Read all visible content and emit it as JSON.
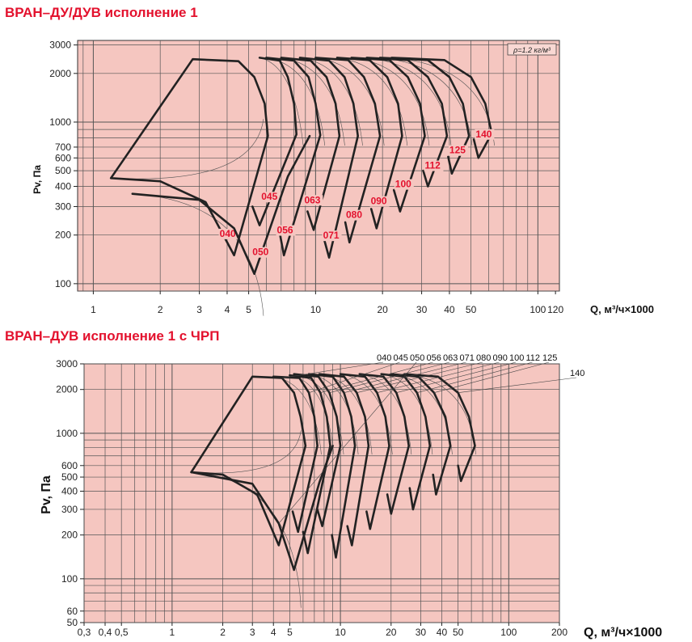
{
  "titles": {
    "chart1": "ВРАН–ДУ/ДУВ исполнение 1",
    "chart2": "ВРАН–ДУВ исполнение 1 с ЧРП"
  },
  "colors": {
    "title": "#e3122e",
    "background": "#f5c6c0",
    "grid": "#555555",
    "curve": "#222222"
  },
  "chart_data": [
    {
      "type": "line",
      "title": "ВРАН–ДУ/ДУВ исполнение 1",
      "xlabel": "Q, м³/ч×1000",
      "ylabel": "Pv, Па",
      "x_scale": "log",
      "y_scale": "log",
      "xlim": [
        0.85,
        125
      ],
      "ylim": [
        90,
        3200
      ],
      "x_ticks": [
        1,
        2,
        3,
        4,
        5,
        10,
        20,
        30,
        40,
        50,
        100,
        120
      ],
      "x_tick_labels": [
        "1",
        "2",
        "3",
        "4",
        "5",
        "10",
        "20",
        "30",
        "40",
        "50",
        "100",
        "120"
      ],
      "y_ticks": [
        100,
        200,
        300,
        400,
        500,
        600,
        700,
        1000,
        2000,
        3000
      ],
      "y_tick_labels": [
        "100",
        "200",
        "300",
        "400",
        "500",
        "600",
        "700",
        "1000",
        "2000",
        "3000"
      ],
      "annotation": "ρ=1.2 кг/м³",
      "grid": true,
      "series": [
        {
          "name": "040",
          "points": [
            [
              1.2,
              450
            ],
            [
              2.8,
              2450
            ],
            [
              4.5,
              2380
            ],
            [
              5.3,
              1900
            ],
            [
              5.9,
              1300
            ],
            [
              6.1,
              820
            ],
            [
              4.3,
              150
            ],
            [
              3.2,
              320
            ],
            [
              2.0,
              430
            ],
            [
              1.2,
              450
            ]
          ],
          "label_at": [
            3.7,
            195
          ]
        },
        {
          "name": "045",
          "points": [
            [
              5.6,
              2500
            ],
            [
              6.9,
              2400
            ],
            [
              7.5,
              1900
            ],
            [
              8.0,
              1300
            ],
            [
              8.2,
              840
            ],
            [
              5.6,
              230
            ],
            [
              5.2,
              300
            ]
          ],
          "label_at": [
            5.7,
            330
          ]
        },
        {
          "name": "050",
          "points": [
            [
              1.5,
              360
            ],
            [
              3.0,
              330
            ],
            [
              4.3,
              220
            ],
            [
              5.3,
              115
            ],
            [
              7.5,
              460
            ],
            [
              9.4,
              820
            ]
          ],
          "label_at": [
            5.2,
            150
          ]
        },
        {
          "name": "056",
          "points": [
            [
              6.0,
              2500
            ],
            [
              8.0,
              2400
            ],
            [
              9.3,
              1900
            ],
            [
              10.0,
              1300
            ],
            [
              10.5,
              830
            ],
            [
              7.2,
              150
            ],
            [
              6.9,
              205
            ]
          ],
          "label_at": [
            6.7,
            205
          ]
        },
        {
          "name": "063",
          "points": [
            [
              7.0,
              2500
            ],
            [
              9.5,
              2400
            ],
            [
              11.2,
              1900
            ],
            [
              12.3,
              1300
            ],
            [
              12.8,
              820
            ],
            [
              9.8,
              215
            ],
            [
              9.2,
              280
            ]
          ],
          "label_at": [
            8.9,
            315
          ]
        },
        {
          "name": "071",
          "points": [
            [
              8.5,
              2500
            ],
            [
              11.5,
              2400
            ],
            [
              13.5,
              1900
            ],
            [
              14.8,
              1300
            ],
            [
              15.5,
              820
            ],
            [
              11.5,
              145
            ],
            [
              10.9,
              190
            ]
          ],
          "label_at": [
            10.8,
            190
          ]
        },
        {
          "name": "080",
          "points": [
            [
              10.0,
              2500
            ],
            [
              14.0,
              2420
            ],
            [
              16.5,
              1900
            ],
            [
              18.5,
              1300
            ],
            [
              19.5,
              820
            ],
            [
              14.2,
              180
            ],
            [
              13.6,
              240
            ]
          ],
          "label_at": [
            13.7,
            255
          ]
        },
        {
          "name": "090",
          "points": [
            [
              12.5,
              2500
            ],
            [
              17.5,
              2420
            ],
            [
              21.0,
              1900
            ],
            [
              23.5,
              1300
            ],
            [
              24.5,
              820
            ],
            [
              18.8,
              220
            ],
            [
              17.8,
              290
            ]
          ],
          "label_at": [
            17.7,
            310
          ]
        },
        {
          "name": "100",
          "points": [
            [
              14.5,
              2500
            ],
            [
              21.5,
              2420
            ],
            [
              26.0,
              1900
            ],
            [
              29.5,
              1300
            ],
            [
              31.0,
              820
            ],
            [
              24.0,
              280
            ],
            [
              22.5,
              380
            ]
          ],
          "label_at": [
            22.8,
            395
          ]
        },
        {
          "name": "112",
          "points": [
            [
              17.0,
              2500
            ],
            [
              26.0,
              2420
            ],
            [
              32.0,
              1900
            ],
            [
              37.0,
              1300
            ],
            [
              39.0,
              820
            ],
            [
              32.0,
              400
            ],
            [
              30.5,
              500
            ]
          ],
          "label_at": [
            31.0,
            515
          ]
        },
        {
          "name": "125",
          "points": [
            [
              19.5,
              2500
            ],
            [
              32.0,
              2420
            ],
            [
              40.0,
              1900
            ],
            [
              46.0,
              1300
            ],
            [
              49.0,
              820
            ],
            [
              41.0,
              480
            ],
            [
              39.5,
              610
            ]
          ],
          "label_at": [
            40.0,
            640
          ]
        },
        {
          "name": "140",
          "points": [
            [
              22.0,
              2500
            ],
            [
              38.0,
              2420
            ],
            [
              50.0,
              1900
            ],
            [
              58.0,
              1300
            ],
            [
              62.0,
              850
            ],
            [
              54.0,
              600
            ],
            [
              51.5,
              780
            ]
          ],
          "label_at": [
            52.5,
            805
          ]
        }
      ]
    },
    {
      "type": "line",
      "title": "ВРАН–ДУВ исполнение 1 с ЧРП",
      "xlabel": "Q, м³/ч×1000",
      "ylabel": "Pv, Па",
      "x_scale": "log",
      "y_scale": "log",
      "xlim": [
        0.3,
        200
      ],
      "ylim": [
        50,
        3000
      ],
      "x_ticks": [
        0.3,
        0.4,
        0.5,
        1,
        2,
        3,
        4,
        5,
        10,
        20,
        30,
        40,
        50,
        100,
        200
      ],
      "x_tick_labels": [
        "0,3",
        "0,4",
        "0,5",
        "1",
        "2",
        "3",
        "4",
        "5",
        "10",
        "20",
        "30",
        "40",
        "50",
        "100",
        "200"
      ],
      "y_ticks": [
        50,
        60,
        100,
        200,
        300,
        400,
        500,
        600,
        1000,
        2000,
        3000
      ],
      "y_tick_labels": [
        "50",
        "60",
        "100",
        "200",
        "300",
        "400",
        "500",
        "600",
        "1000",
        "2000",
        "3000"
      ],
      "size_labels": [
        "040",
        "045",
        "050",
        "056",
        "063",
        "071",
        "080",
        "090",
        "100",
        "112",
        "125",
        "140"
      ],
      "grid": true,
      "series": [
        {
          "name": "040",
          "points": [
            [
              1.3,
              540
            ],
            [
              3.0,
              2450
            ],
            [
              4.5,
              2400
            ],
            [
              5.3,
              1900
            ],
            [
              5.8,
              1300
            ],
            [
              6.2,
              820
            ],
            [
              4.3,
              170
            ],
            [
              3.2,
              380
            ],
            [
              2.0,
              520
            ],
            [
              1.3,
              540
            ]
          ]
        },
        {
          "name": "045",
          "points": [
            [
              4.0,
              2450
            ],
            [
              5.7,
              2400
            ],
            [
              6.5,
              1900
            ],
            [
              7.0,
              1300
            ],
            [
              7.3,
              820
            ],
            [
              5.6,
              210
            ],
            [
              5.2,
              290
            ]
          ]
        },
        {
          "name": "050",
          "points": [
            [
              1.3,
              540
            ],
            [
              3.0,
              450
            ],
            [
              4.3,
              240
            ],
            [
              5.3,
              115
            ],
            [
              7.5,
              460
            ],
            [
              9.0,
              820
            ]
          ]
        },
        {
          "name": "056",
          "points": [
            [
              5.0,
              2500
            ],
            [
              6.7,
              2400
            ],
            [
              7.6,
              1900
            ],
            [
              8.3,
              1300
            ],
            [
              8.7,
              820
            ],
            [
              6.4,
              150
            ],
            [
              6.0,
              210
            ]
          ]
        },
        {
          "name": "063",
          "points": [
            [
              5.3,
              2550
            ],
            [
              7.4,
              2450
            ],
            [
              8.6,
              1900
            ],
            [
              9.5,
              1300
            ],
            [
              10.0,
              820
            ],
            [
              7.8,
              230
            ],
            [
              7.3,
              300
            ]
          ]
        },
        {
          "name": "071",
          "points": [
            [
              6.5,
              2550
            ],
            [
              9.0,
              2450
            ],
            [
              10.5,
              1900
            ],
            [
              11.6,
              1300
            ],
            [
              12.2,
              820
            ],
            [
              9.4,
              140
            ],
            [
              8.9,
              200
            ]
          ]
        },
        {
          "name": "080",
          "points": [
            [
              7.5,
              2550
            ],
            [
              10.5,
              2450
            ],
            [
              12.5,
              1900
            ],
            [
              14.0,
              1300
            ],
            [
              14.7,
              820
            ],
            [
              11.7,
              170
            ],
            [
              11.0,
              230
            ]
          ]
        },
        {
          "name": "090",
          "points": [
            [
              10.0,
              2550
            ],
            [
              14.0,
              2450
            ],
            [
              16.5,
              1900
            ],
            [
              18.5,
              1300
            ],
            [
              19.5,
              820
            ],
            [
              15.0,
              220
            ],
            [
              14.3,
              290
            ]
          ]
        },
        {
          "name": "100",
          "points": [
            [
              13.0,
              2550
            ],
            [
              18.0,
              2450
            ],
            [
              21.5,
              1900
            ],
            [
              24.0,
              1300
            ],
            [
              25.5,
              820
            ],
            [
              20.0,
              280
            ],
            [
              19.0,
              380
            ]
          ]
        },
        {
          "name": "112",
          "points": [
            [
              17.5,
              2550
            ],
            [
              24.0,
              2450
            ],
            [
              28.5,
              1900
            ],
            [
              32.0,
              1300
            ],
            [
              34.0,
              820
            ],
            [
              27.0,
              300
            ],
            [
              25.8,
              420
            ]
          ]
        },
        {
          "name": "125",
          "points": [
            [
              20.0,
              2550
            ],
            [
              29.0,
              2450
            ],
            [
              36.0,
              1900
            ],
            [
              42.0,
              1300
            ],
            [
              45.0,
              820
            ],
            [
              37.0,
              380
            ],
            [
              35.5,
              520
            ]
          ]
        },
        {
          "name": "140",
          "points": [
            [
              24.0,
              2550
            ],
            [
              38.0,
              2450
            ],
            [
              50.0,
              1900
            ],
            [
              58.0,
              1300
            ],
            [
              63.0,
              820
            ],
            [
              52.0,
              470
            ],
            [
              50.0,
              600
            ]
          ]
        }
      ]
    }
  ]
}
